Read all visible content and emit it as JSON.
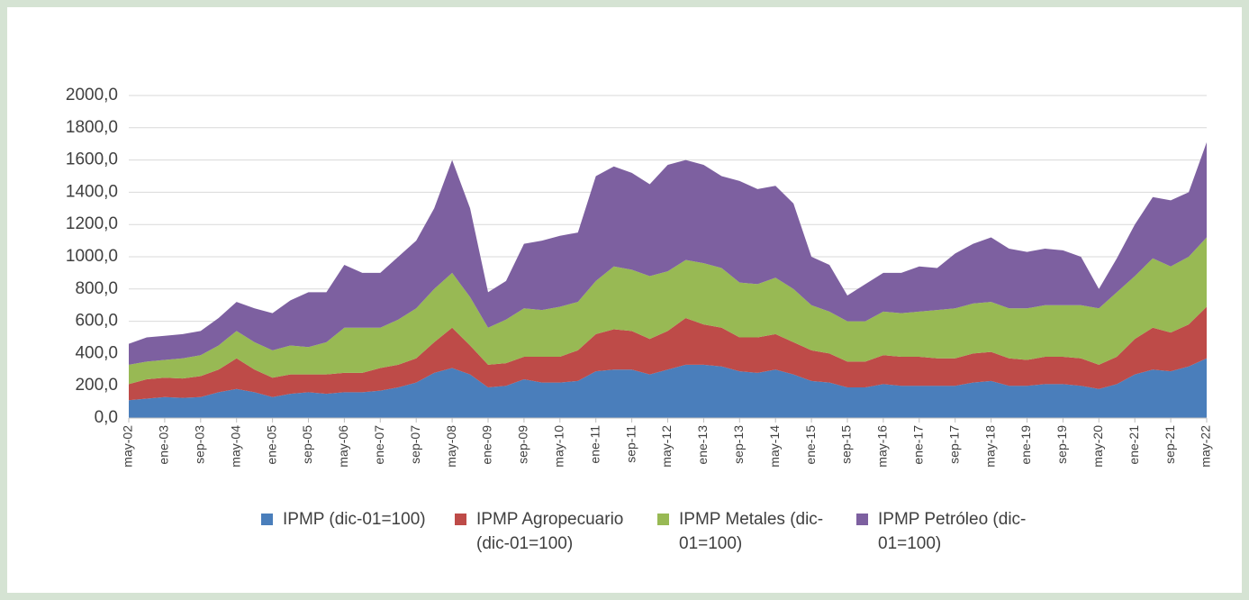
{
  "chart_data": {
    "type": "stacked_area",
    "categories": [
      "may-02",
      null,
      "ene-03",
      null,
      "sep-03",
      null,
      "may-04",
      null,
      "ene-05",
      null,
      "sep-05",
      null,
      "may-06",
      null,
      "ene-07",
      null,
      "sep-07",
      null,
      "may-08",
      null,
      "ene-09",
      null,
      "sep-09",
      null,
      "may-10",
      null,
      "ene-11",
      null,
      "sep-11",
      null,
      "may-12",
      null,
      "ene-13",
      null,
      "sep-13",
      null,
      "may-14",
      null,
      "ene-15",
      null,
      "sep-15",
      null,
      "may-16",
      null,
      "ene-17",
      null,
      "sep-17",
      null,
      "may-18",
      null,
      "ene-19",
      null,
      "sep-19",
      null,
      "may-20",
      null,
      "ene-21",
      null,
      "sep-21",
      null,
      "may-22"
    ],
    "series": [
      {
        "name": "IPMP (dic-01=100)",
        "color": "#4a7ebb",
        "values": [
          110,
          120,
          130,
          125,
          130,
          160,
          180,
          160,
          130,
          150,
          160,
          150,
          160,
          160,
          170,
          190,
          220,
          280,
          310,
          270,
          190,
          200,
          240,
          220,
          220,
          230,
          290,
          300,
          300,
          270,
          300,
          330,
          330,
          320,
          290,
          280,
          300,
          270,
          230,
          220,
          190,
          190,
          210,
          200,
          200,
          200,
          200,
          220,
          230,
          200,
          200,
          210,
          210,
          200,
          180,
          210,
          270,
          300,
          290,
          320,
          370
        ]
      },
      {
        "name": "IPMP Agropecuario (dic-01=100)",
        "color": "#be4b48",
        "values": [
          100,
          120,
          120,
          120,
          130,
          140,
          190,
          140,
          120,
          120,
          110,
          120,
          120,
          120,
          140,
          140,
          150,
          190,
          250,
          180,
          140,
          140,
          140,
          160,
          160,
          190,
          230,
          250,
          240,
          220,
          240,
          290,
          250,
          240,
          210,
          220,
          220,
          200,
          190,
          180,
          160,
          160,
          180,
          180,
          180,
          170,
          170,
          180,
          180,
          170,
          160,
          170,
          170,
          170,
          150,
          170,
          220,
          260,
          240,
          260,
          320
        ]
      },
      {
        "name": "IPMP Metales (dic-01=100)",
        "color": "#98b954",
        "values": [
          120,
          110,
          110,
          125,
          130,
          150,
          170,
          170,
          170,
          180,
          170,
          200,
          280,
          280,
          250,
          280,
          310,
          330,
          340,
          300,
          230,
          270,
          300,
          290,
          310,
          300,
          330,
          390,
          380,
          390,
          370,
          360,
          380,
          370,
          340,
          330,
          350,
          330,
          280,
          260,
          250,
          250,
          270,
          270,
          280,
          300,
          310,
          310,
          310,
          310,
          320,
          320,
          320,
          330,
          350,
          400,
          390,
          430,
          410,
          420,
          430
        ]
      },
      {
        "name": "IPMP Petróleo (dic-01=100)",
        "color": "#7d60a0",
        "values": [
          130,
          150,
          150,
          150,
          150,
          170,
          180,
          210,
          230,
          280,
          340,
          310,
          390,
          340,
          340,
          390,
          420,
          500,
          700,
          550,
          220,
          240,
          400,
          430,
          440,
          430,
          650,
          620,
          600,
          570,
          660,
          620,
          610,
          570,
          630,
          590,
          570,
          530,
          300,
          290,
          160,
          230,
          240,
          250,
          280,
          260,
          340,
          370,
          400,
          370,
          350,
          350,
          340,
          300,
          120,
          210,
          320,
          380,
          410,
          400,
          590
        ]
      }
    ],
    "ylim": [
      0,
      2000
    ],
    "yticks": [
      {
        "value": 0,
        "label": "0,0"
      },
      {
        "value": 200,
        "label": "200,0"
      },
      {
        "value": 400,
        "label": "400,0"
      },
      {
        "value": 600,
        "label": "600,0"
      },
      {
        "value": 800,
        "label": "800,0"
      },
      {
        "value": 1000,
        "label": "1000,0"
      },
      {
        "value": 1200,
        "label": "1200,0"
      },
      {
        "value": 1400,
        "label": "1400,0"
      },
      {
        "value": 1600,
        "label": "1600,0"
      },
      {
        "value": 1800,
        "label": "1800,0"
      },
      {
        "value": 2000,
        "label": "2000,0"
      }
    ],
    "grid": true,
    "legend": "bottom"
  }
}
